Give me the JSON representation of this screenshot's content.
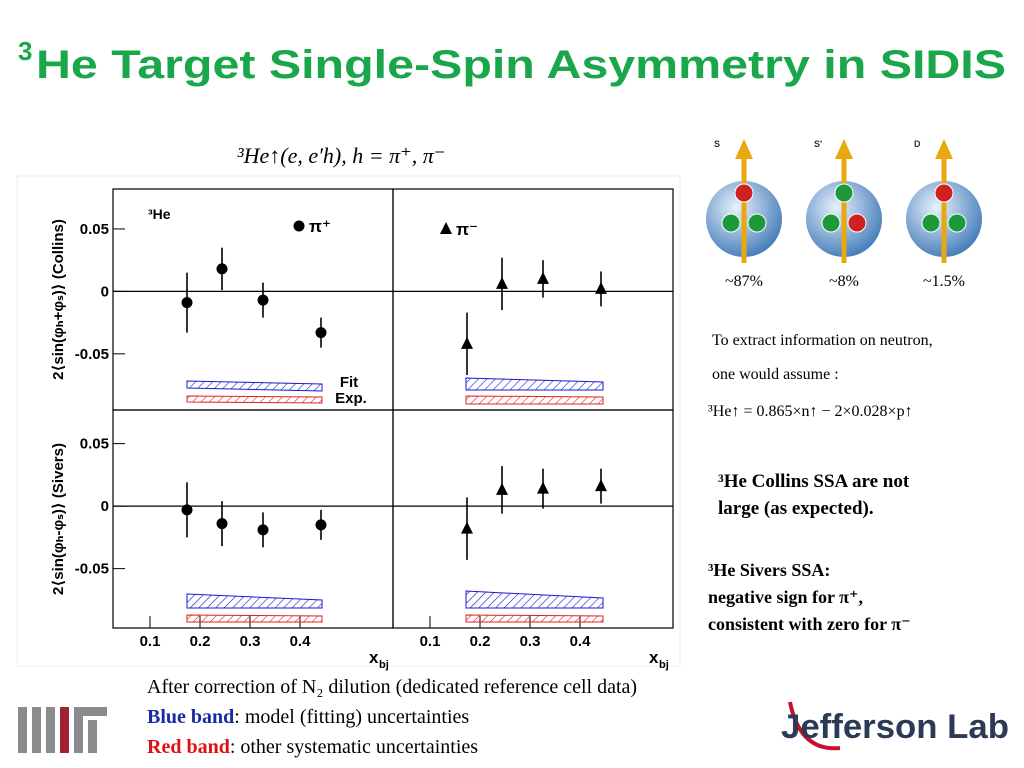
{
  "title_sup": "3",
  "title": "He Target Single-Spin Asymmetry in SIDIS",
  "reaction": "³He↑(e, e′h),  h = π⁺, π⁻",
  "chart_data": [
    {
      "type": "scatter",
      "xlim": [
        0.026,
        0.586
      ],
      "ylim": [
        -0.095,
        0.082
      ],
      "yticks": [
        0.05,
        0,
        -0.05
      ],
      "ylabel": "2⟨sin(φₕ+φₛ)⟩ (Collins)",
      "annotation": "³He",
      "band_labels": [
        "Fit",
        "Exp."
      ],
      "x": [
        0.174,
        0.244,
        0.326,
        0.442
      ],
      "series": [
        {
          "name": "π⁺",
          "marker": "circle",
          "color": "#000000",
          "values": [
            -0.009,
            0.018,
            -0.007,
            -0.033
          ],
          "errors": [
            0.024,
            0.017,
            0.014,
            0.012
          ]
        }
      ]
    },
    {
      "type": "scatter",
      "xlim": [
        0.026,
        0.586
      ],
      "ylim": [
        -0.095,
        0.082
      ],
      "x": [
        0.174,
        0.244,
        0.326,
        0.442
      ],
      "series": [
        {
          "name": "π⁻",
          "marker": "triangle",
          "color": "#000000",
          "values": [
            -0.042,
            0.006,
            0.01,
            0.002
          ],
          "errors": [
            0.025,
            0.021,
            0.015,
            0.014
          ]
        }
      ]
    },
    {
      "type": "scatter",
      "xlim": [
        0.026,
        0.586
      ],
      "ylim": [
        -0.0975,
        0.0769
      ],
      "yticks": [
        0.05,
        0,
        -0.05
      ],
      "xticks": [
        0.1,
        0.2,
        0.3,
        0.4
      ],
      "ylabel": "2⟨sin(φₕ-φₛ)⟩ (Sivers)",
      "xlabel": "x",
      "xlabel_sub": "bj",
      "x": [
        0.174,
        0.244,
        0.326,
        0.442
      ],
      "series": [
        {
          "marker": "circle",
          "color": "#000000",
          "values": [
            -0.003,
            -0.014,
            -0.019,
            -0.015
          ],
          "errors": [
            0.022,
            0.018,
            0.014,
            0.012
          ]
        }
      ]
    },
    {
      "type": "scatter",
      "xlim": [
        0.026,
        0.586
      ],
      "ylim": [
        -0.0975,
        0.0769
      ],
      "xticks": [
        0.1,
        0.2,
        0.3,
        0.4
      ],
      "xlabel": "x",
      "xlabel_sub": "bj",
      "x": [
        0.174,
        0.244,
        0.326,
        0.442
      ],
      "series": [
        {
          "marker": "triangle",
          "color": "#000000",
          "values": [
            -0.018,
            0.013,
            0.014,
            0.016
          ],
          "errors": [
            0.025,
            0.019,
            0.016,
            0.014
          ]
        }
      ]
    }
  ],
  "states": [
    {
      "label": "S",
      "fraction": "~87%"
    },
    {
      "label": "S′",
      "fraction": "~8%"
    },
    {
      "label": "D",
      "fraction": "~1.5%"
    }
  ],
  "note": [
    "To extract information on neutron,",
    "one would assume :",
    "³He↑ = 0.865×n↑ − 2×0.028×p↑"
  ],
  "collins": [
    "³He Collins SSA are not",
    "large (as expected)."
  ],
  "sivers": [
    "³He Sivers SSA:",
    "negative sign for π⁺,",
    "consistent with zero for π⁻"
  ],
  "footer": {
    "line1": "After correction of N₂ dilution (dedicated reference cell data)",
    "blue_key": "Blue band",
    "blue_text": ": model (fitting) uncertainties",
    "red_key": "Red band",
    "red_text": ": other systematic uncertainties"
  },
  "logo": "Jefferson Lab"
}
